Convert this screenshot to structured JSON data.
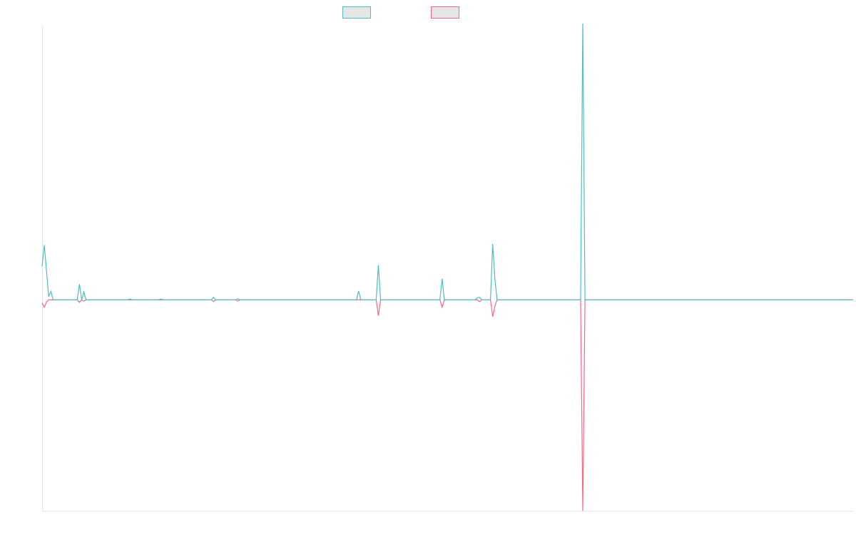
{
  "chart_data": {
    "type": "line",
    "title": "",
    "xlabel": "",
    "ylabel": "",
    "legend_position": "top-center",
    "grid": false,
    "axis_labels_visible": false,
    "x_count": 370,
    "ylim": [
      -100,
      130
    ],
    "series": [
      {
        "color": "#4bc0c0",
        "points": [
          [
            0,
            16
          ],
          [
            1,
            26
          ],
          [
            3,
            1.5
          ],
          [
            4,
            4
          ],
          [
            5,
            0
          ],
          [
            16,
            0
          ],
          [
            17,
            7.5
          ],
          [
            18,
            0
          ],
          [
            19,
            3.8
          ],
          [
            20,
            0
          ],
          [
            39,
            0
          ],
          [
            40,
            0.4
          ],
          [
            41,
            0
          ],
          [
            53,
            0
          ],
          [
            54,
            0.4
          ],
          [
            55,
            0
          ],
          [
            77,
            0
          ],
          [
            78,
            1.2
          ],
          [
            79,
            0
          ],
          [
            88,
            0
          ],
          [
            89,
            0.5
          ],
          [
            90,
            0
          ],
          [
            143,
            0
          ],
          [
            144,
            4.2
          ],
          [
            145,
            0
          ],
          [
            152,
            0
          ],
          [
            153,
            16.5
          ],
          [
            154,
            0
          ],
          [
            181,
            0
          ],
          [
            182,
            10
          ],
          [
            183,
            0
          ],
          [
            197,
            0
          ],
          [
            198,
            1
          ],
          [
            199,
            1.2
          ],
          [
            200,
            0
          ],
          [
            204,
            0
          ],
          [
            205,
            26.5
          ],
          [
            206,
            10
          ],
          [
            207,
            0
          ],
          [
            245,
            0
          ],
          [
            246,
            131
          ],
          [
            247,
            0
          ],
          [
            369,
            0
          ]
        ]
      },
      {
        "color": "#ff6384",
        "points": [
          [
            0,
            -1.5
          ],
          [
            1,
            -3.5
          ],
          [
            2,
            -1
          ],
          [
            3,
            0
          ],
          [
            16,
            0
          ],
          [
            17,
            -1.2
          ],
          [
            18,
            0
          ],
          [
            19,
            -0.6
          ],
          [
            20,
            0
          ],
          [
            77,
            0
          ],
          [
            78,
            -0.8
          ],
          [
            79,
            0
          ],
          [
            88,
            0
          ],
          [
            89,
            -0.5
          ],
          [
            90,
            0
          ],
          [
            152,
            0
          ],
          [
            153,
            -7.5
          ],
          [
            154,
            0
          ],
          [
            181,
            0
          ],
          [
            182,
            -3.5
          ],
          [
            183,
            0
          ],
          [
            198,
            0
          ],
          [
            199,
            -0.8
          ],
          [
            200,
            0
          ],
          [
            204,
            0
          ],
          [
            205,
            -8
          ],
          [
            206,
            -3
          ],
          [
            207,
            0
          ],
          [
            245,
            0
          ],
          [
            246,
            -100
          ],
          [
            247,
            0
          ],
          [
            369,
            0
          ]
        ]
      }
    ]
  }
}
